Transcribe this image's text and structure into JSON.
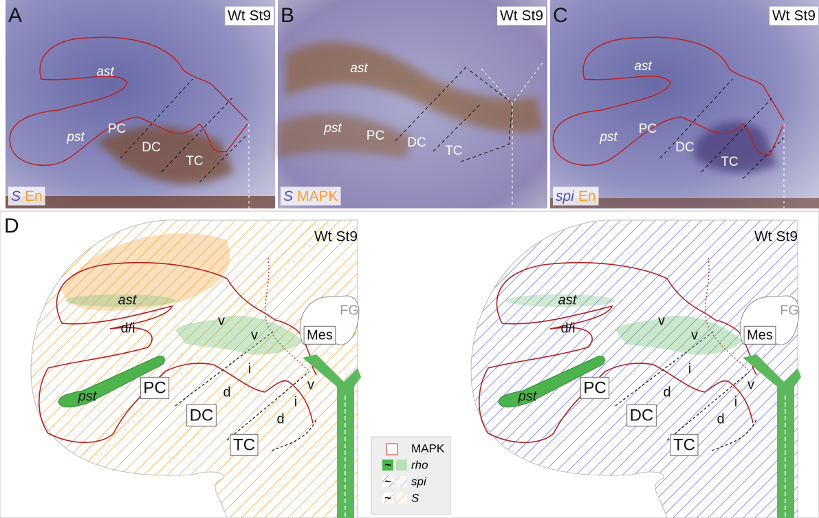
{
  "panels": [
    {
      "letter": "A",
      "stage": "Wt St9",
      "probe": "S",
      "stain": "En",
      "labels": [
        "ast",
        "pst",
        "PC",
        "DC",
        "TC"
      ]
    },
    {
      "letter": "B",
      "stage": "Wt St9",
      "probe": "S",
      "stain": "MAPK",
      "labels": [
        "ast",
        "pst",
        "PC",
        "DC",
        "TC"
      ]
    },
    {
      "letter": "C",
      "stage": "Wt St9",
      "probe": "spi",
      "stain": "En",
      "labels": [
        "ast",
        "pst",
        "PC",
        "DC",
        "TC"
      ]
    }
  ],
  "schematic": {
    "letter": "D",
    "diagrams": [
      {
        "stage": "Wt St9",
        "labels": [
          "ast",
          "d/i",
          "pst",
          "PC",
          "DC",
          "TC",
          "v",
          "v",
          "i",
          "d",
          "v",
          "i",
          "d",
          "FG",
          "Mes"
        ]
      },
      {
        "stage": "Wt St9",
        "labels": [
          "ast",
          "d/i",
          "pst",
          "PC",
          "DC",
          "TC",
          "v",
          "v",
          "i",
          "d",
          "v",
          "i",
          "d",
          "FG",
          "Mes"
        ]
      }
    ],
    "legend": [
      {
        "label": "MAPK"
      },
      {
        "symbol": "~",
        "label": "rho"
      },
      {
        "symbol": "~",
        "label": "spi"
      },
      {
        "symbol": "~",
        "label": "S"
      }
    ]
  }
}
